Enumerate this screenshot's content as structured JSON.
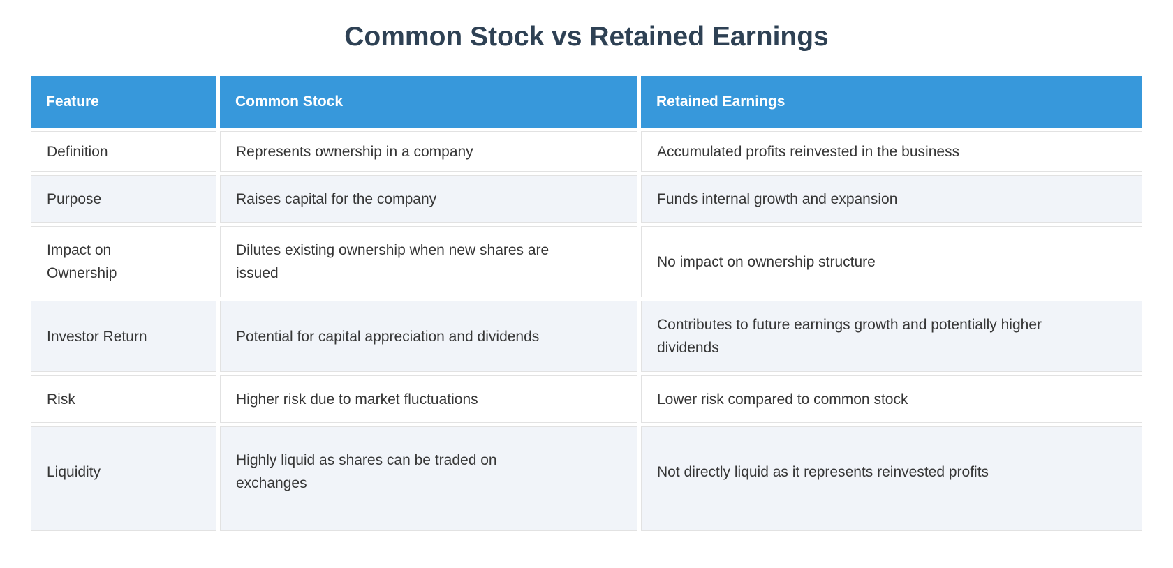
{
  "colors": {
    "header_bg": "#3798db",
    "header_text": "#ffffff",
    "title_text": "#2e4154",
    "body_text": "#363636",
    "row_bg": "#ffffff",
    "row_alt_bg": "#f1f4f9",
    "cell_border": "#e2e2e2"
  },
  "chart_data": {
    "type": "table",
    "title": "Common Stock vs Retained Earnings",
    "columns": [
      "Feature",
      "Common Stock",
      "Retained Earnings"
    ],
    "rows": [
      {
        "feature": "Definition",
        "common_stock": "Represents ownership in a company",
        "retained_earnings": "Accumulated profits reinvested in the business"
      },
      {
        "feature": "Purpose",
        "common_stock": "Raises capital for the company",
        "retained_earnings": "Funds internal growth and expansion"
      },
      {
        "feature": "Impact on Ownership",
        "common_stock": "Dilutes existing ownership when new shares are issued",
        "retained_earnings": "No impact on ownership structure"
      },
      {
        "feature": "Investor Return",
        "common_stock": "Potential for capital appreciation and dividends",
        "retained_earnings": "Contributes to future earnings growth and potentially higher dividends"
      },
      {
        "feature": "Risk",
        "common_stock": "Higher risk due to market fluctuations",
        "retained_earnings": "Lower risk compared to common stock"
      },
      {
        "feature": "Liquidity",
        "common_stock": "Highly liquid as shares can be traded on exchanges",
        "retained_earnings": "Not directly liquid as it represents reinvested profits"
      }
    ],
    "layout": {
      "header_position": "top",
      "zebra_striping": true,
      "grid": "cell-borders",
      "legend": "none"
    }
  }
}
